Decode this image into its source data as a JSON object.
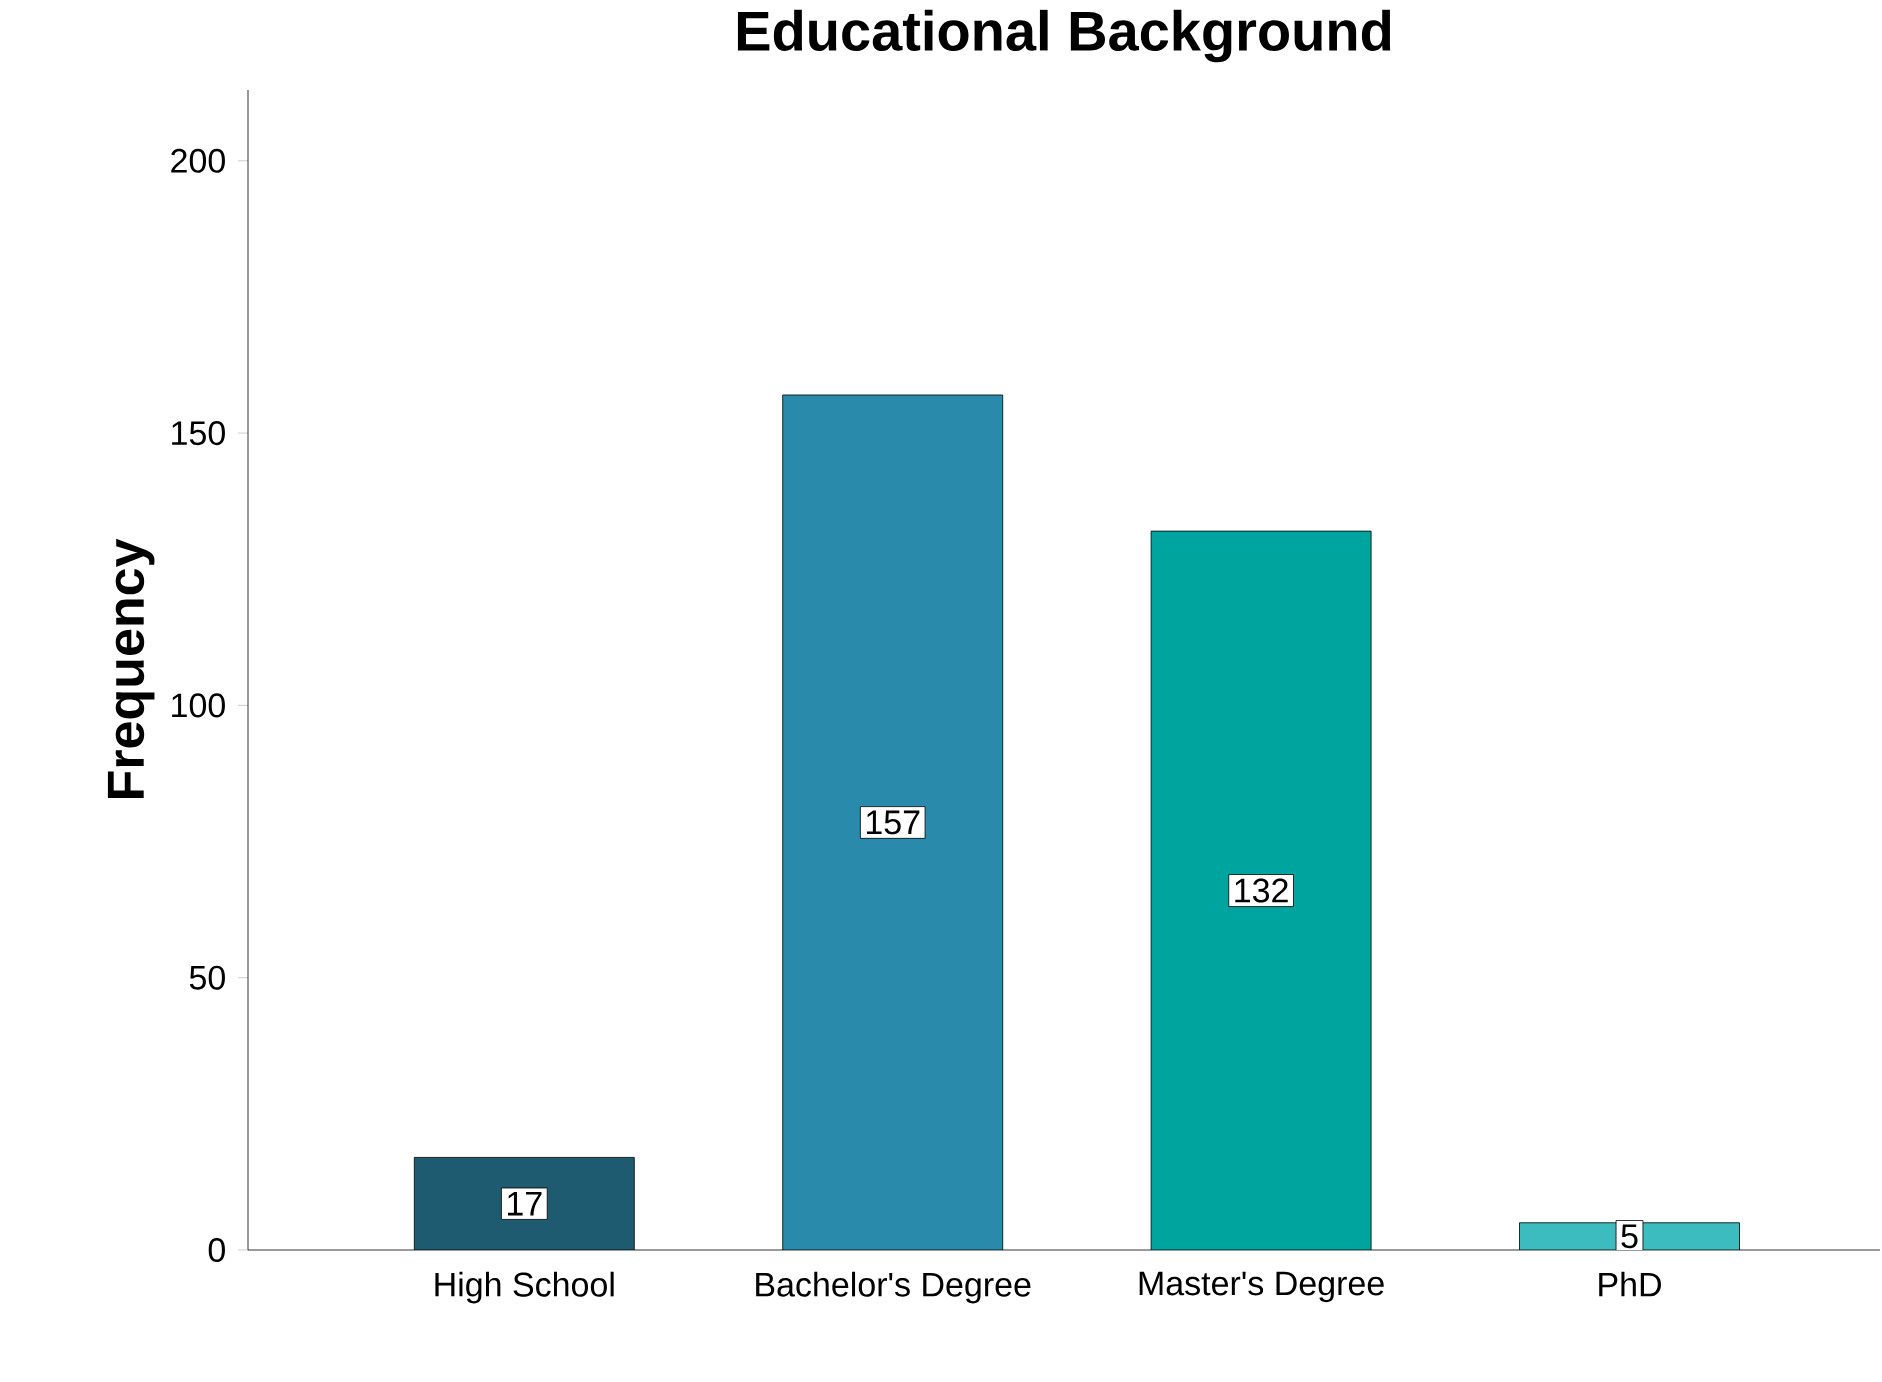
{
  "chart_data": {
    "type": "bar",
    "title": "Educational Background",
    "ylabel": "Frequency",
    "categories": [
      "High School",
      "Bachelor's Degree",
      "Master's Degree",
      "PhD"
    ],
    "values": [
      17,
      157,
      132,
      5
    ],
    "colors": [
      "#1f5b70",
      "#2a8aab",
      "#00a49f",
      "#3dbcbf"
    ],
    "ylim": [
      0,
      213
    ],
    "yticks": [
      0,
      50,
      100,
      150,
      200
    ],
    "data_labels": true
  }
}
